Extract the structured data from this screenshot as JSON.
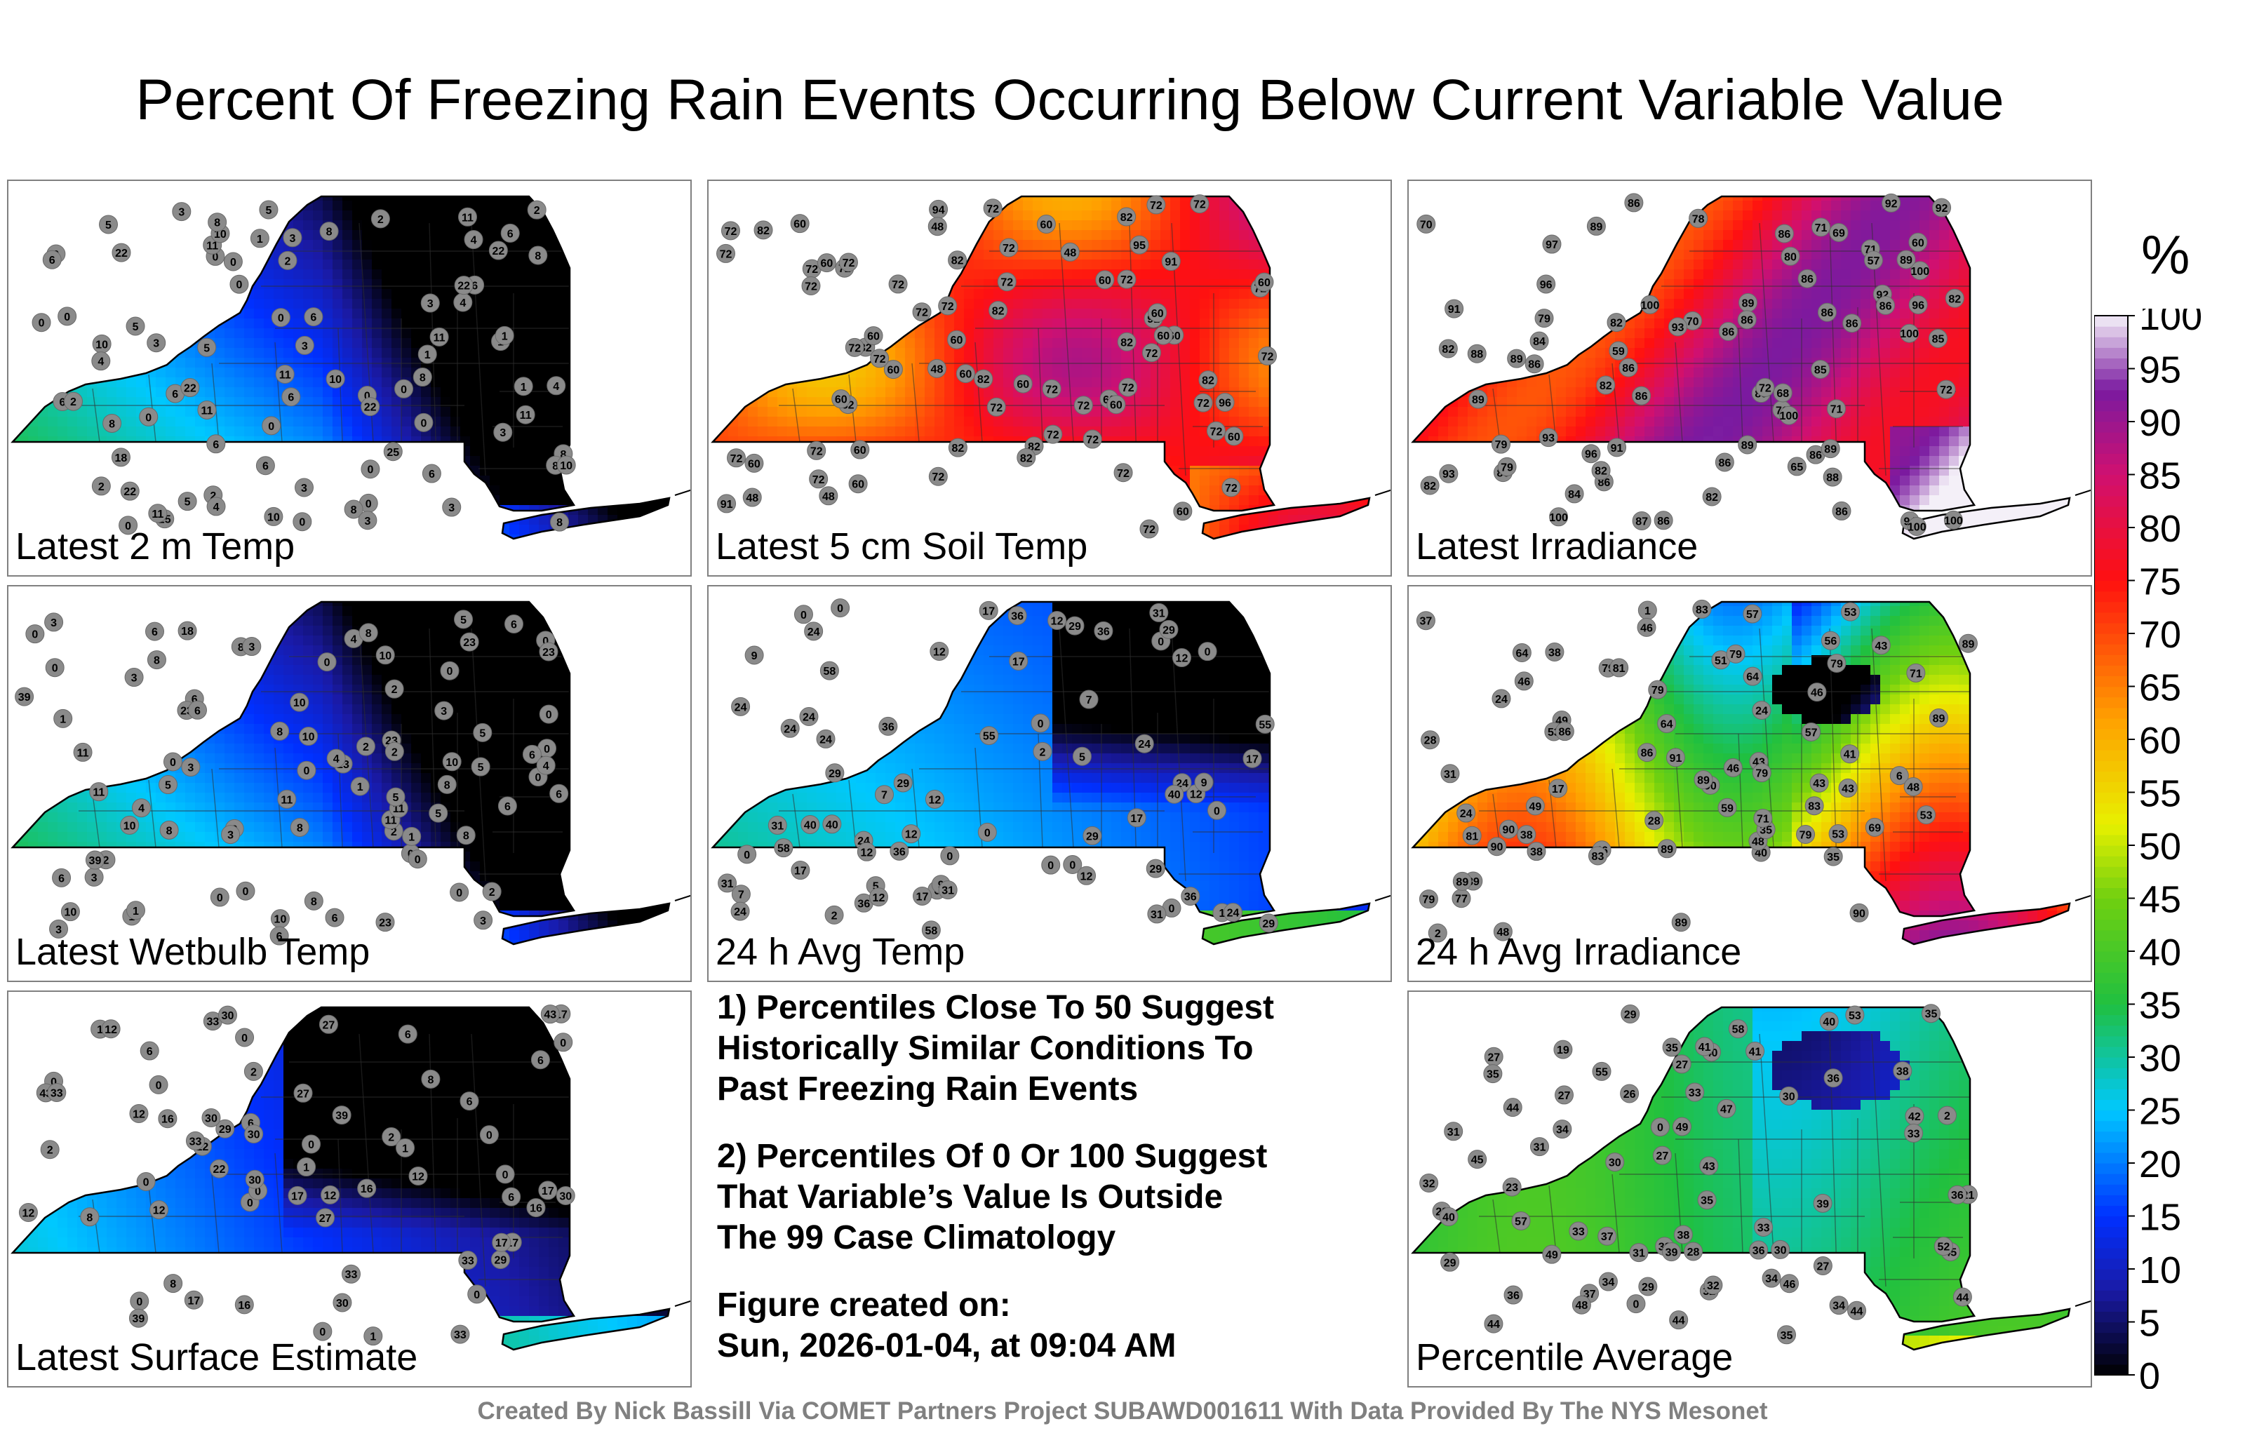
{
  "title": "Percent Of Freezing Rain Events Occurring Below Current Variable Value",
  "panels": [
    {
      "label": "Latest 2 m Temp",
      "theme": "cold",
      "values": [
        0,
        0,
        0,
        0,
        0,
        0,
        0,
        0,
        0,
        0,
        0,
        0,
        1,
        0,
        0,
        1,
        0,
        0,
        1,
        2,
        4,
        3,
        5,
        18,
        11,
        11,
        10,
        11,
        11,
        10,
        10,
        11,
        10,
        11,
        8,
        6,
        5,
        6,
        8,
        8,
        2,
        3,
        6,
        22,
        4,
        4,
        8,
        2,
        3,
        6,
        8,
        3,
        3,
        5,
        6,
        1,
        2,
        2,
        5,
        6,
        3,
        8,
        1,
        3,
        8,
        6,
        5,
        22,
        22,
        25,
        25,
        22,
        22,
        22,
        10,
        11,
        8,
        6,
        4,
        3,
        2,
        6,
        6,
        8,
        4,
        3
      ]
    },
    {
      "label": "Latest 5 cm Soil Temp",
      "theme": "warm",
      "values": [
        72,
        60,
        82,
        60,
        82,
        96,
        60,
        72,
        94,
        48,
        60,
        72,
        91,
        72,
        82,
        72,
        72,
        60,
        82,
        72,
        72,
        72,
        48,
        82,
        72,
        60,
        60,
        72,
        82,
        72,
        72,
        72,
        72,
        60,
        72,
        72,
        72,
        91,
        91,
        72,
        72,
        72,
        72,
        82,
        82,
        72,
        60,
        60,
        48,
        60,
        60,
        60,
        72,
        95,
        72,
        72,
        60,
        72,
        60,
        60,
        48,
        60,
        48,
        72,
        82,
        82,
        72,
        60,
        82,
        72,
        72,
        72,
        60,
        72,
        82,
        72,
        60,
        60,
        72
      ]
    },
    {
      "label": "Latest Irradiance",
      "theme": "irr",
      "values": [
        88,
        86,
        92,
        96,
        94,
        86,
        86,
        89,
        86,
        87,
        71,
        82,
        86,
        85,
        65,
        69,
        86,
        59,
        86,
        88,
        89,
        82,
        93,
        89,
        92,
        89,
        57,
        86,
        82,
        60,
        86,
        86,
        89,
        89,
        70,
        72,
        82,
        86,
        89,
        86,
        97,
        100,
        93,
        86,
        71,
        80,
        85,
        92,
        86,
        86,
        82,
        79,
        84,
        79,
        71,
        100,
        100,
        93,
        100,
        100,
        96,
        100,
        91,
        96,
        78,
        68,
        70,
        89,
        86,
        82,
        71,
        79,
        72,
        86,
        82,
        84,
        100,
        91
      ]
    },
    {
      "label": "Latest Wetbulb Temp",
      "theme": "cold",
      "values": [
        0,
        0,
        0,
        0,
        0,
        0,
        0,
        0,
        0,
        0,
        0,
        0,
        1,
        0,
        0,
        1,
        0,
        0,
        1,
        2,
        5,
        3,
        5,
        18,
        11,
        11,
        10,
        11,
        10,
        10,
        10,
        11,
        10,
        11,
        8,
        6,
        5,
        6,
        8,
        8,
        2,
        3,
        6,
        23,
        4,
        4,
        8,
        2,
        3,
        6,
        8,
        3,
        3,
        5,
        6,
        1,
        2,
        2,
        5,
        6,
        3,
        8,
        1,
        3,
        8,
        6,
        5,
        23,
        23,
        23,
        23,
        39,
        39,
        23,
        10,
        10,
        8,
        6,
        4,
        3,
        2,
        6,
        6,
        8,
        4,
        3
      ]
    },
    {
      "label": "24 h Avg Temp",
      "theme": "avgt",
      "values": [
        0,
        0,
        0,
        0,
        0,
        0,
        0,
        0,
        0,
        0,
        0,
        2,
        5,
        0,
        1,
        0,
        9,
        2,
        36,
        36,
        29,
        40,
        36,
        31,
        17,
        12,
        24,
        29,
        5,
        12,
        29,
        9,
        24,
        17,
        29,
        24,
        24,
        17,
        29,
        24,
        24,
        40,
        29,
        31,
        24,
        36,
        36,
        31,
        7,
        7,
        7,
        17,
        12,
        17,
        17,
        12,
        12,
        12,
        12,
        9,
        24,
        12,
        31,
        31,
        24,
        40,
        29,
        36,
        55,
        55,
        58,
        58,
        58,
        12,
        24
      ]
    },
    {
      "label": "24 h Avg Irradiance",
      "theme": "avgi",
      "values": [
        46,
        46,
        48,
        40,
        43,
        37,
        49,
        38,
        31,
        28,
        64,
        48,
        64,
        43,
        2,
        24,
        1,
        35,
        46,
        43,
        56,
        49,
        79,
        83,
        24,
        17,
        6,
        43,
        48,
        51,
        79,
        79,
        77,
        69,
        35,
        53,
        57,
        71,
        79,
        59,
        46,
        89,
        79,
        53,
        81,
        89,
        28,
        24,
        38,
        64,
        41,
        53,
        79,
        57,
        71,
        89,
        89,
        90,
        91,
        90,
        89,
        86,
        89,
        89,
        90,
        46,
        83,
        86,
        90,
        83,
        79,
        81,
        53,
        38
      ]
    },
    {
      "label": "Latest Surface Estimate",
      "theme": "est",
      "values": [
        0,
        0,
        0,
        0,
        0,
        0,
        0,
        0,
        0,
        0,
        0,
        1,
        0,
        0,
        1,
        1,
        2,
        2,
        2,
        6,
        1,
        33,
        30,
        30,
        29,
        16,
        27,
        30,
        27,
        30,
        33,
        22,
        29,
        17,
        17,
        12,
        12,
        8,
        6,
        6,
        12,
        17,
        39,
        43,
        27,
        16,
        6,
        17,
        8,
        12,
        16,
        16,
        12,
        33,
        33,
        33,
        33,
        39,
        17,
        12,
        17,
        8,
        6,
        6,
        12,
        30,
        30,
        43
      ]
    },
    {
      "label": "Percentile Average",
      "theme": "avg",
      "values": [
        29,
        27,
        30,
        31,
        28,
        29,
        35,
        32,
        26,
        27,
        32,
        30,
        28,
        0,
        19,
        2,
        0,
        27,
        23,
        21,
        30,
        32,
        29,
        27,
        35,
        32,
        49,
        47,
        44,
        37,
        31,
        45,
        46,
        45,
        34,
        35,
        36,
        35,
        33,
        37,
        39,
        38,
        44,
        36,
        34,
        34,
        31,
        41,
        33,
        38,
        36,
        34,
        40,
        43,
        39,
        40,
        27,
        42,
        44,
        48,
        49,
        44,
        52,
        53,
        55,
        58,
        57,
        35,
        33,
        36,
        33,
        40,
        41,
        44
      ]
    }
  ],
  "notes": {
    "line1": "1) Percentiles Close To 50 Suggest",
    "line2": "Historically Similar Conditions To",
    "line3": "Past Freezing Rain Events",
    "line4": "2) Percentiles Of 0 Or 100 Suggest",
    "line5": "That Variable’s Value Is Outside",
    "line6": "The 99 Case Climatology",
    "line7": "Figure created on:",
    "line8": "Sun, 2026-01-04, at 09:04 AM"
  },
  "credit": "Created By Nick Bassill Via COMET Partners Project SUBAWD001611 With Data Provided By The NYS Mesonet",
  "chart_data": {
    "type": "heatmap",
    "title": "Percent Of Freezing Rain Events Occurring Below Current Variable Value",
    "colorbar": {
      "unit": "%",
      "ticks": [
        "0",
        "5",
        "10",
        "15",
        "20",
        "25",
        "30",
        "35",
        "40",
        "45",
        "50",
        "55",
        "60",
        "65",
        "70",
        "75",
        "80",
        "85",
        "90",
        "95",
        "100"
      ],
      "range": [
        0,
        100
      ]
    },
    "colors": {
      "0": "#000000",
      "8": "#1a1aa6",
      "15": "#0030ff",
      "25": "#00c8ff",
      "35": "#20c040",
      "45": "#70d010",
      "52": "#e8f000",
      "62": "#ffa000",
      "75": "#ff1010",
      "85": "#d01070",
      "93": "#7a1aa0",
      "100": "#f4f0f8"
    }
  }
}
